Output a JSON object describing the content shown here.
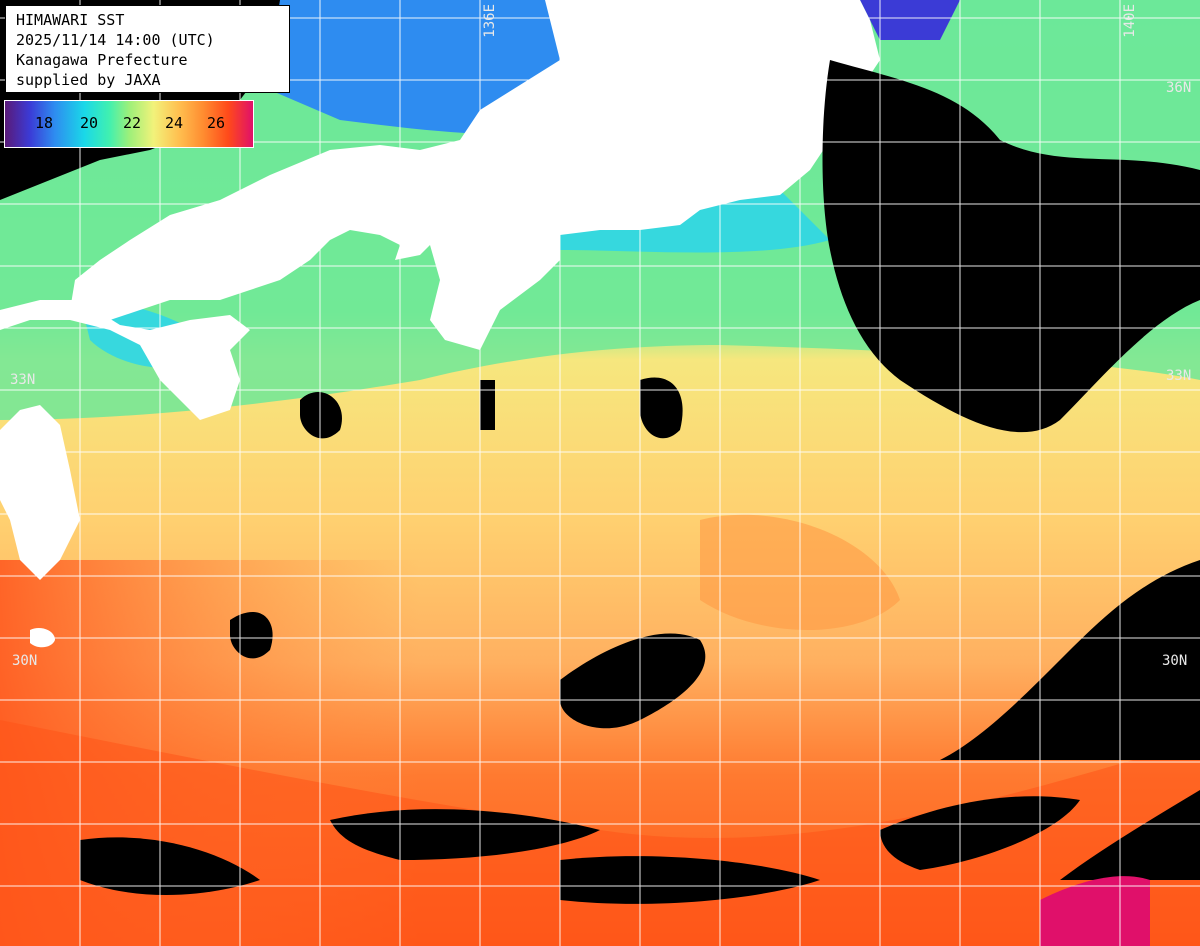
{
  "header": {
    "title": "HIMAWARI SST",
    "datetime": "2025/11/14 14:00 (UTC)",
    "region": "Kanagawa Prefecture",
    "credit": "supplied by JAXA"
  },
  "legend": {
    "ticks": [
      "18",
      "20",
      "22",
      "24",
      "26"
    ],
    "colors": [
      "#5a1a78",
      "#3b3bd6",
      "#2e8cf0",
      "#1ad8e8",
      "#40f0b0",
      "#9cf07a",
      "#f2f27a",
      "#ffc050",
      "#ff8c30",
      "#ff4a1a",
      "#e0106a"
    ]
  },
  "grid_labels": {
    "lon_136": "136E",
    "lon_140": "140E",
    "lat_36_right": "36N",
    "lat_33_left": "33N",
    "lat_33_right": "33N",
    "lat_30_left": "30N",
    "lat_30_right": "30N"
  },
  "map_colors": {
    "land": "#ffffff",
    "cloud": "#000000",
    "grid": "#ffffff"
  }
}
